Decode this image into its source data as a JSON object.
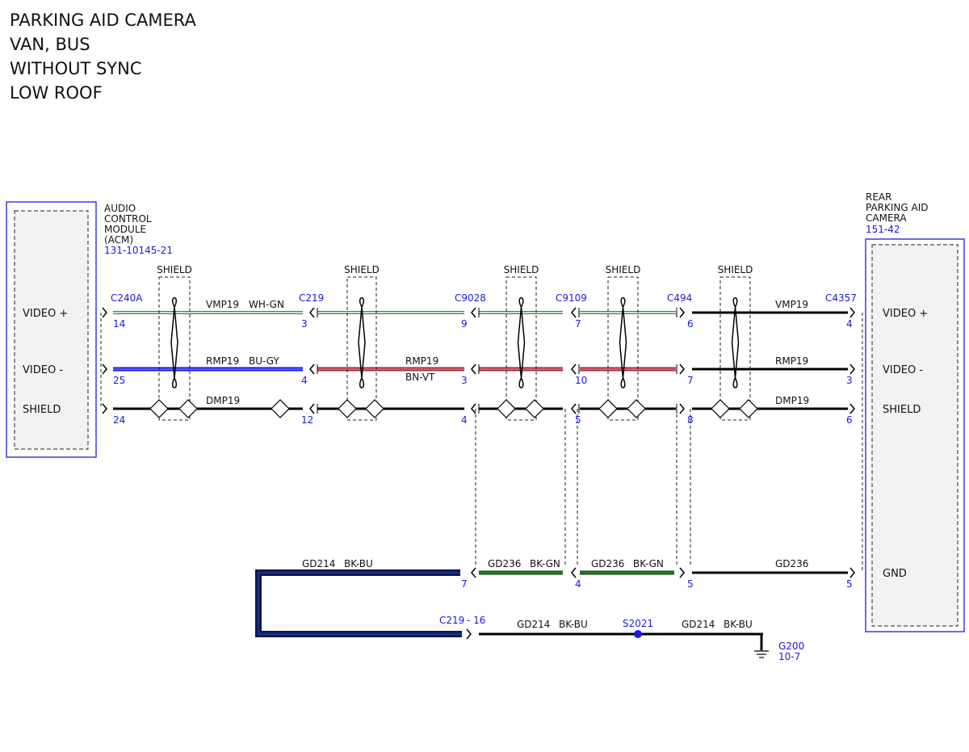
{
  "header": {
    "lines": [
      "PARKING AID CAMERA",
      "VAN, BUS",
      "WITHOUT SYNC",
      "LOW ROOF"
    ]
  },
  "modules": {
    "left": {
      "name_lines": [
        "AUDIO",
        "CONTROL",
        "MODULE",
        "(ACM)"
      ],
      "part": "131-10145-21",
      "pins": [
        "VIDEO +",
        "VIDEO -",
        "SHIELD"
      ]
    },
    "right": {
      "name_lines": [
        "REAR",
        "PARKING AID",
        "CAMERA"
      ],
      "part": "151-42",
      "pins": [
        "VIDEO +",
        "VIDEO -",
        "SHIELD",
        "GND"
      ]
    }
  },
  "connectors": [
    {
      "name": "C240A",
      "pins": [
        14,
        25,
        24
      ]
    },
    {
      "name": "C219",
      "pins": [
        3,
        4,
        12
      ]
    },
    {
      "name": "C9028",
      "pins": [
        9,
        3,
        4
      ],
      "gnd_pin": 7
    },
    {
      "name": "C9109",
      "pins": [
        7,
        10,
        5
      ],
      "gnd_pin": 4
    },
    {
      "name": "C494",
      "pins": [
        6,
        7,
        8
      ],
      "gnd_pin": 5
    },
    {
      "name": "C4357",
      "pins": [
        4,
        3,
        6
      ],
      "gnd_pin": 5
    }
  ],
  "shields": [
    "SHIELD",
    "SHIELD",
    "SHIELD",
    "SHIELD",
    "SHIELD"
  ],
  "wire_labels": [
    "VMP19",
    "WH-GN",
    "VMP19",
    "RMP19",
    "BU-GY",
    "RMP19",
    "BN-VT",
    "RMP19",
    "DMP19",
    "DMP19",
    "GD214",
    "BK-BU",
    "GD236",
    "BK-GN",
    "GD236",
    "BK-GN",
    "GD236",
    "GD214",
    "BK-BU",
    "GD214",
    "BK-BU"
  ],
  "ground": {
    "connector": "C219",
    "connector_pin": "- 16",
    "splice": "S2021",
    "point": "G200",
    "ref": "10-7"
  }
}
